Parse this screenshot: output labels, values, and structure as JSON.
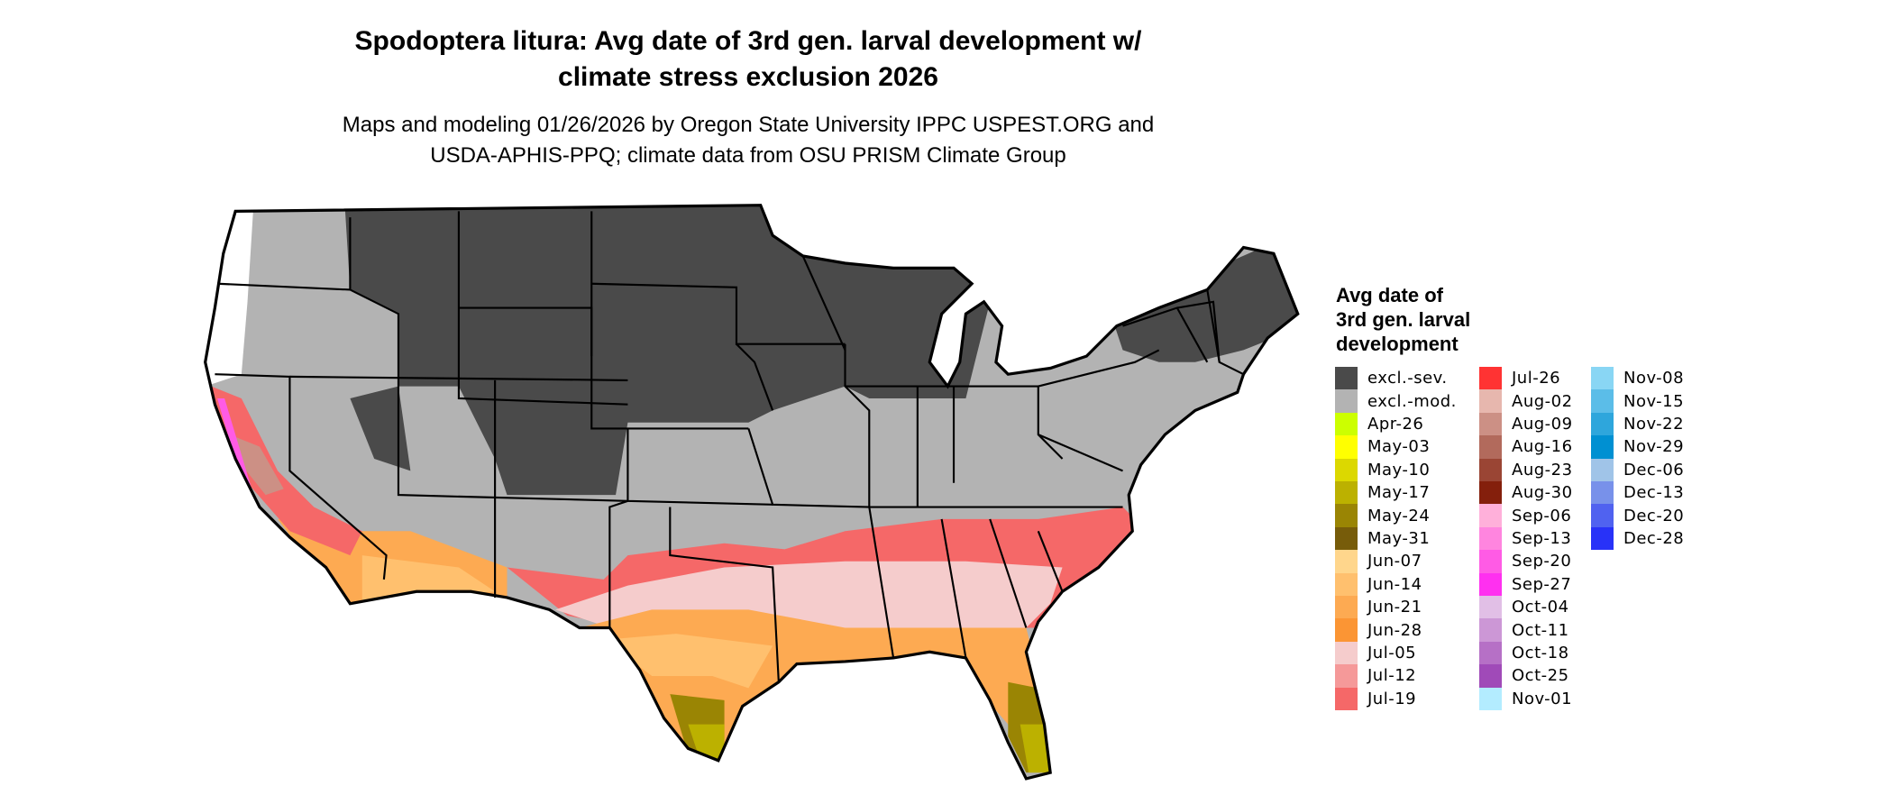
{
  "title": {
    "line1": "Spodoptera litura: Avg date of 3rd gen. larval development w/",
    "line2": "climate stress exclusion 2026"
  },
  "subtitle": {
    "line1": "Maps and modeling 01/26/2026 by Oregon State University IPPC USPEST.ORG and",
    "line2": "USDA-APHIS-PPQ; climate data from OSU PRISM Climate Group"
  },
  "legend": {
    "title_lines": [
      "Avg date of",
      "3rd gen. larval",
      "development"
    ],
    "columns": [
      [
        {
          "label": "excl.-sev.",
          "color": "#4a4a4a"
        },
        {
          "label": "excl.-mod.",
          "color": "#b3b3b3"
        },
        {
          "label": "Apr-26",
          "color": "#ccff00"
        },
        {
          "label": "May-03",
          "color": "#ffff00"
        },
        {
          "label": "May-10",
          "color": "#dcd800"
        },
        {
          "label": "May-17",
          "color": "#bcb100"
        },
        {
          "label": "May-24",
          "color": "#9a8504"
        },
        {
          "label": "May-31",
          "color": "#775c0a"
        },
        {
          "label": "Jun-07",
          "color": "#ffd68c"
        },
        {
          "label": "Jun-14",
          "color": "#ffc06e"
        },
        {
          "label": "Jun-21",
          "color": "#fdaa52"
        },
        {
          "label": "Jun-28",
          "color": "#fb9534"
        },
        {
          "label": "Jul-05",
          "color": "#f5cccc"
        },
        {
          "label": "Jul-12",
          "color": "#f59999"
        },
        {
          "label": "Jul-19",
          "color": "#f56868"
        }
      ],
      [
        {
          "label": "Jul-26",
          "color": "#ff3333"
        },
        {
          "label": "Aug-02",
          "color": "#e7b7ae"
        },
        {
          "label": "Aug-09",
          "color": "#cc9085"
        },
        {
          "label": "Aug-16",
          "color": "#b26a5c"
        },
        {
          "label": "Aug-23",
          "color": "#9a4534"
        },
        {
          "label": "Aug-30",
          "color": "#841f0c"
        },
        {
          "label": "Sep-06",
          "color": "#ffb0da"
        },
        {
          "label": "Sep-13",
          "color": "#ff85df"
        },
        {
          "label": "Sep-20",
          "color": "#ff5be5"
        },
        {
          "label": "Sep-27",
          "color": "#ff30f0"
        },
        {
          "label": "Oct-04",
          "color": "#e1bfe6"
        },
        {
          "label": "Oct-11",
          "color": "#cc97d6"
        },
        {
          "label": "Oct-18",
          "color": "#b670c6"
        },
        {
          "label": "Oct-25",
          "color": "#a04ab8"
        },
        {
          "label": "Nov-01",
          "color": "#b3ecff"
        }
      ],
      [
        {
          "label": "Nov-08",
          "color": "#89d6f4"
        },
        {
          "label": "Nov-15",
          "color": "#5bbde8"
        },
        {
          "label": "Nov-22",
          "color": "#2ea6dc"
        },
        {
          "label": "Nov-29",
          "color": "#0090d2"
        },
        {
          "label": "Dec-06",
          "color": "#a0c4e8"
        },
        {
          "label": "Dec-13",
          "color": "#7891ea"
        },
        {
          "label": "Dec-20",
          "color": "#5062f0"
        },
        {
          "label": "Dec-28",
          "color": "#2832f8"
        }
      ]
    ]
  }
}
